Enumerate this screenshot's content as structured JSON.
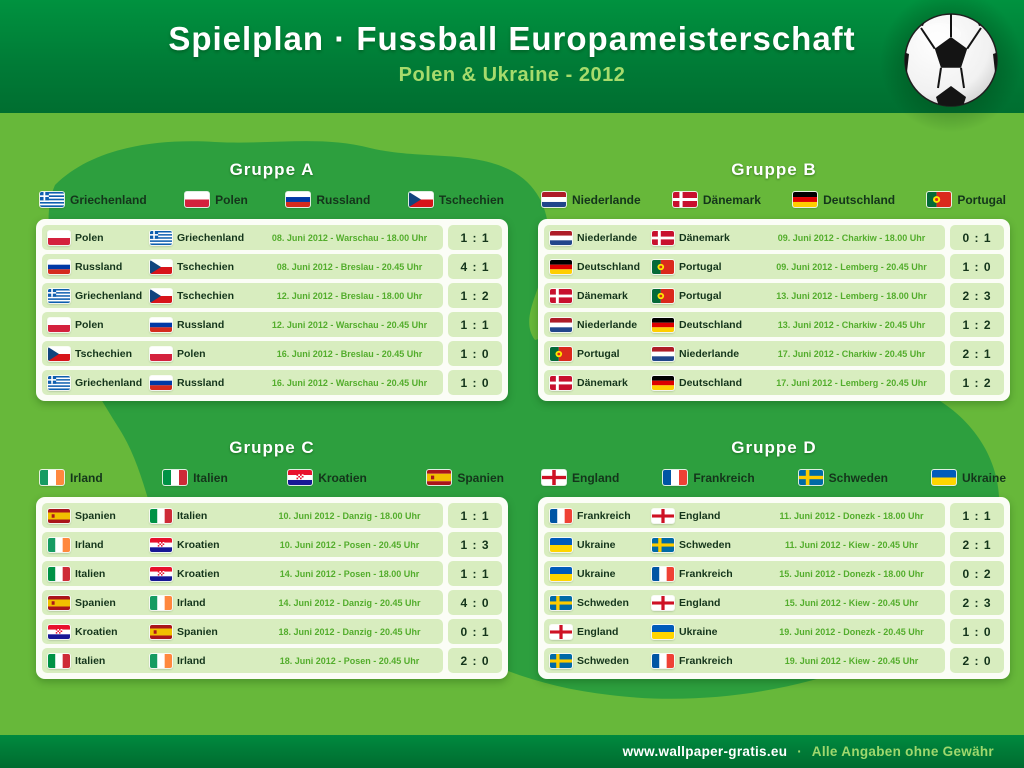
{
  "header": {
    "title": "Spielplan · Fussball Europameisterschaft",
    "subtitle": "Polen & Ukraine - 2012"
  },
  "footer": {
    "url": "www.wallpaper-gratis.eu",
    "separator": "·",
    "note": "Alle Angaben ohne Gewähr"
  },
  "colors": {
    "header_green": "#00923f",
    "body_green": "#67b83a",
    "map_green": "#2d9f3e",
    "row_green": "#d8edbf",
    "info_green": "#53ad2c"
  },
  "groups": [
    {
      "name": "Gruppe A",
      "teams": [
        {
          "label": "Griechenland",
          "flag": "gr"
        },
        {
          "label": "Polen",
          "flag": "pl"
        },
        {
          "label": "Russland",
          "flag": "ru"
        },
        {
          "label": "Tschechien",
          "flag": "cz"
        }
      ],
      "matches": [
        {
          "home": {
            "label": "Polen",
            "flag": "pl"
          },
          "away": {
            "label": "Griechenland",
            "flag": "gr"
          },
          "info": "08. Juni 2012 - Warschau - 18.00 Uhr",
          "score": "1 : 1"
        },
        {
          "home": {
            "label": "Russland",
            "flag": "ru"
          },
          "away": {
            "label": "Tschechien",
            "flag": "cz"
          },
          "info": "08. Juni 2012 - Breslau - 20.45 Uhr",
          "score": "4 : 1"
        },
        {
          "home": {
            "label": "Griechenland",
            "flag": "gr"
          },
          "away": {
            "label": "Tschechien",
            "flag": "cz"
          },
          "info": "12. Juni 2012 - Breslau - 18.00 Uhr",
          "score": "1 : 2"
        },
        {
          "home": {
            "label": "Polen",
            "flag": "pl"
          },
          "away": {
            "label": "Russland",
            "flag": "ru"
          },
          "info": "12. Juni 2012 - Warschau - 20.45 Uhr",
          "score": "1 : 1"
        },
        {
          "home": {
            "label": "Tschechien",
            "flag": "cz"
          },
          "away": {
            "label": "Polen",
            "flag": "pl"
          },
          "info": "16. Juni 2012 - Breslau - 20.45 Uhr",
          "score": "1 : 0"
        },
        {
          "home": {
            "label": "Griechenland",
            "flag": "gr"
          },
          "away": {
            "label": "Russland",
            "flag": "ru"
          },
          "info": "16. Juni 2012 - Warschau - 20.45 Uhr",
          "score": "1 : 0"
        }
      ]
    },
    {
      "name": "Gruppe B",
      "teams": [
        {
          "label": "Niederlande",
          "flag": "nl"
        },
        {
          "label": "Dänemark",
          "flag": "dk"
        },
        {
          "label": "Deutschland",
          "flag": "de"
        },
        {
          "label": "Portugal",
          "flag": "pt"
        }
      ],
      "matches": [
        {
          "home": {
            "label": "Niederlande",
            "flag": "nl"
          },
          "away": {
            "label": "Dänemark",
            "flag": "dk"
          },
          "info": "09. Juni 2012 - Charkiw - 18.00 Uhr",
          "score": "0 : 1"
        },
        {
          "home": {
            "label": "Deutschland",
            "flag": "de"
          },
          "away": {
            "label": "Portugal",
            "flag": "pt"
          },
          "info": "09. Juni 2012 - Lemberg - 20.45 Uhr",
          "score": "1 : 0"
        },
        {
          "home": {
            "label": "Dänemark",
            "flag": "dk"
          },
          "away": {
            "label": "Portugal",
            "flag": "pt"
          },
          "info": "13. Juni 2012 - Lemberg - 18.00 Uhr",
          "score": "2 : 3"
        },
        {
          "home": {
            "label": "Niederlande",
            "flag": "nl"
          },
          "away": {
            "label": "Deutschland",
            "flag": "de"
          },
          "info": "13. Juni 2012 - Charkiw - 20.45 Uhr",
          "score": "1 : 2"
        },
        {
          "home": {
            "label": "Portugal",
            "flag": "pt"
          },
          "away": {
            "label": "Niederlande",
            "flag": "nl"
          },
          "info": "17. Juni 2012 - Charkiw - 20.45 Uhr",
          "score": "2 : 1"
        },
        {
          "home": {
            "label": "Dänemark",
            "flag": "dk"
          },
          "away": {
            "label": "Deutschland",
            "flag": "de"
          },
          "info": "17. Juni 2012 - Lemberg - 20.45 Uhr",
          "score": "1 : 2"
        }
      ]
    },
    {
      "name": "Gruppe C",
      "teams": [
        {
          "label": "Irland",
          "flag": "ie"
        },
        {
          "label": "Italien",
          "flag": "it"
        },
        {
          "label": "Kroatien",
          "flag": "hr"
        },
        {
          "label": "Spanien",
          "flag": "es"
        }
      ],
      "matches": [
        {
          "home": {
            "label": "Spanien",
            "flag": "es"
          },
          "away": {
            "label": "Italien",
            "flag": "it"
          },
          "info": "10. Juni 2012 - Danzig - 18.00 Uhr",
          "score": "1 : 1"
        },
        {
          "home": {
            "label": "Irland",
            "flag": "ie"
          },
          "away": {
            "label": "Kroatien",
            "flag": "hr"
          },
          "info": "10. Juni 2012 - Posen - 20.45 Uhr",
          "score": "1 : 3"
        },
        {
          "home": {
            "label": "Italien",
            "flag": "it"
          },
          "away": {
            "label": "Kroatien",
            "flag": "hr"
          },
          "info": "14. Juni 2012 - Posen - 18.00 Uhr",
          "score": "1 : 1"
        },
        {
          "home": {
            "label": "Spanien",
            "flag": "es"
          },
          "away": {
            "label": "Irland",
            "flag": "ie"
          },
          "info": "14. Juni 2012 - Danzig - 20.45 Uhr",
          "score": "4 : 0"
        },
        {
          "home": {
            "label": "Kroatien",
            "flag": "hr"
          },
          "away": {
            "label": "Spanien",
            "flag": "es"
          },
          "info": "18. Juni 2012 - Danzig - 20.45 Uhr",
          "score": "0 : 1"
        },
        {
          "home": {
            "label": "Italien",
            "flag": "it"
          },
          "away": {
            "label": "Irland",
            "flag": "ie"
          },
          "info": "18. Juni 2012 - Posen - 20.45 Uhr",
          "score": "2 : 0"
        }
      ]
    },
    {
      "name": "Gruppe D",
      "teams": [
        {
          "label": "England",
          "flag": "en"
        },
        {
          "label": "Frankreich",
          "flag": "fr"
        },
        {
          "label": "Schweden",
          "flag": "se"
        },
        {
          "label": "Ukraine",
          "flag": "ua"
        }
      ],
      "matches": [
        {
          "home": {
            "label": "Frankreich",
            "flag": "fr"
          },
          "away": {
            "label": "England",
            "flag": "en"
          },
          "info": "11. Juni 2012 - Donezk - 18.00 Uhr",
          "score": "1 : 1"
        },
        {
          "home": {
            "label": "Ukraine",
            "flag": "ua"
          },
          "away": {
            "label": "Schweden",
            "flag": "se"
          },
          "info": "11. Juni 2012 - Kiew - 20.45 Uhr",
          "score": "2 : 1"
        },
        {
          "home": {
            "label": "Ukraine",
            "flag": "ua"
          },
          "away": {
            "label": "Frankreich",
            "flag": "fr"
          },
          "info": "15. Juni 2012 - Donezk - 18.00 Uhr",
          "score": "0 : 2"
        },
        {
          "home": {
            "label": "Schweden",
            "flag": "se"
          },
          "away": {
            "label": "England",
            "flag": "en"
          },
          "info": "15. Juni 2012 - Kiew - 20.45 Uhr",
          "score": "2 : 3"
        },
        {
          "home": {
            "label": "England",
            "flag": "en"
          },
          "away": {
            "label": "Ukraine",
            "flag": "ua"
          },
          "info": "19. Juni 2012 - Donezk - 20.45 Uhr",
          "score": "1 : 0"
        },
        {
          "home": {
            "label": "Schweden",
            "flag": "se"
          },
          "away": {
            "label": "Frankreich",
            "flag": "fr"
          },
          "info": "19. Juni 2012 - Kiew - 20.45 Uhr",
          "score": "2 : 0"
        }
      ]
    }
  ]
}
